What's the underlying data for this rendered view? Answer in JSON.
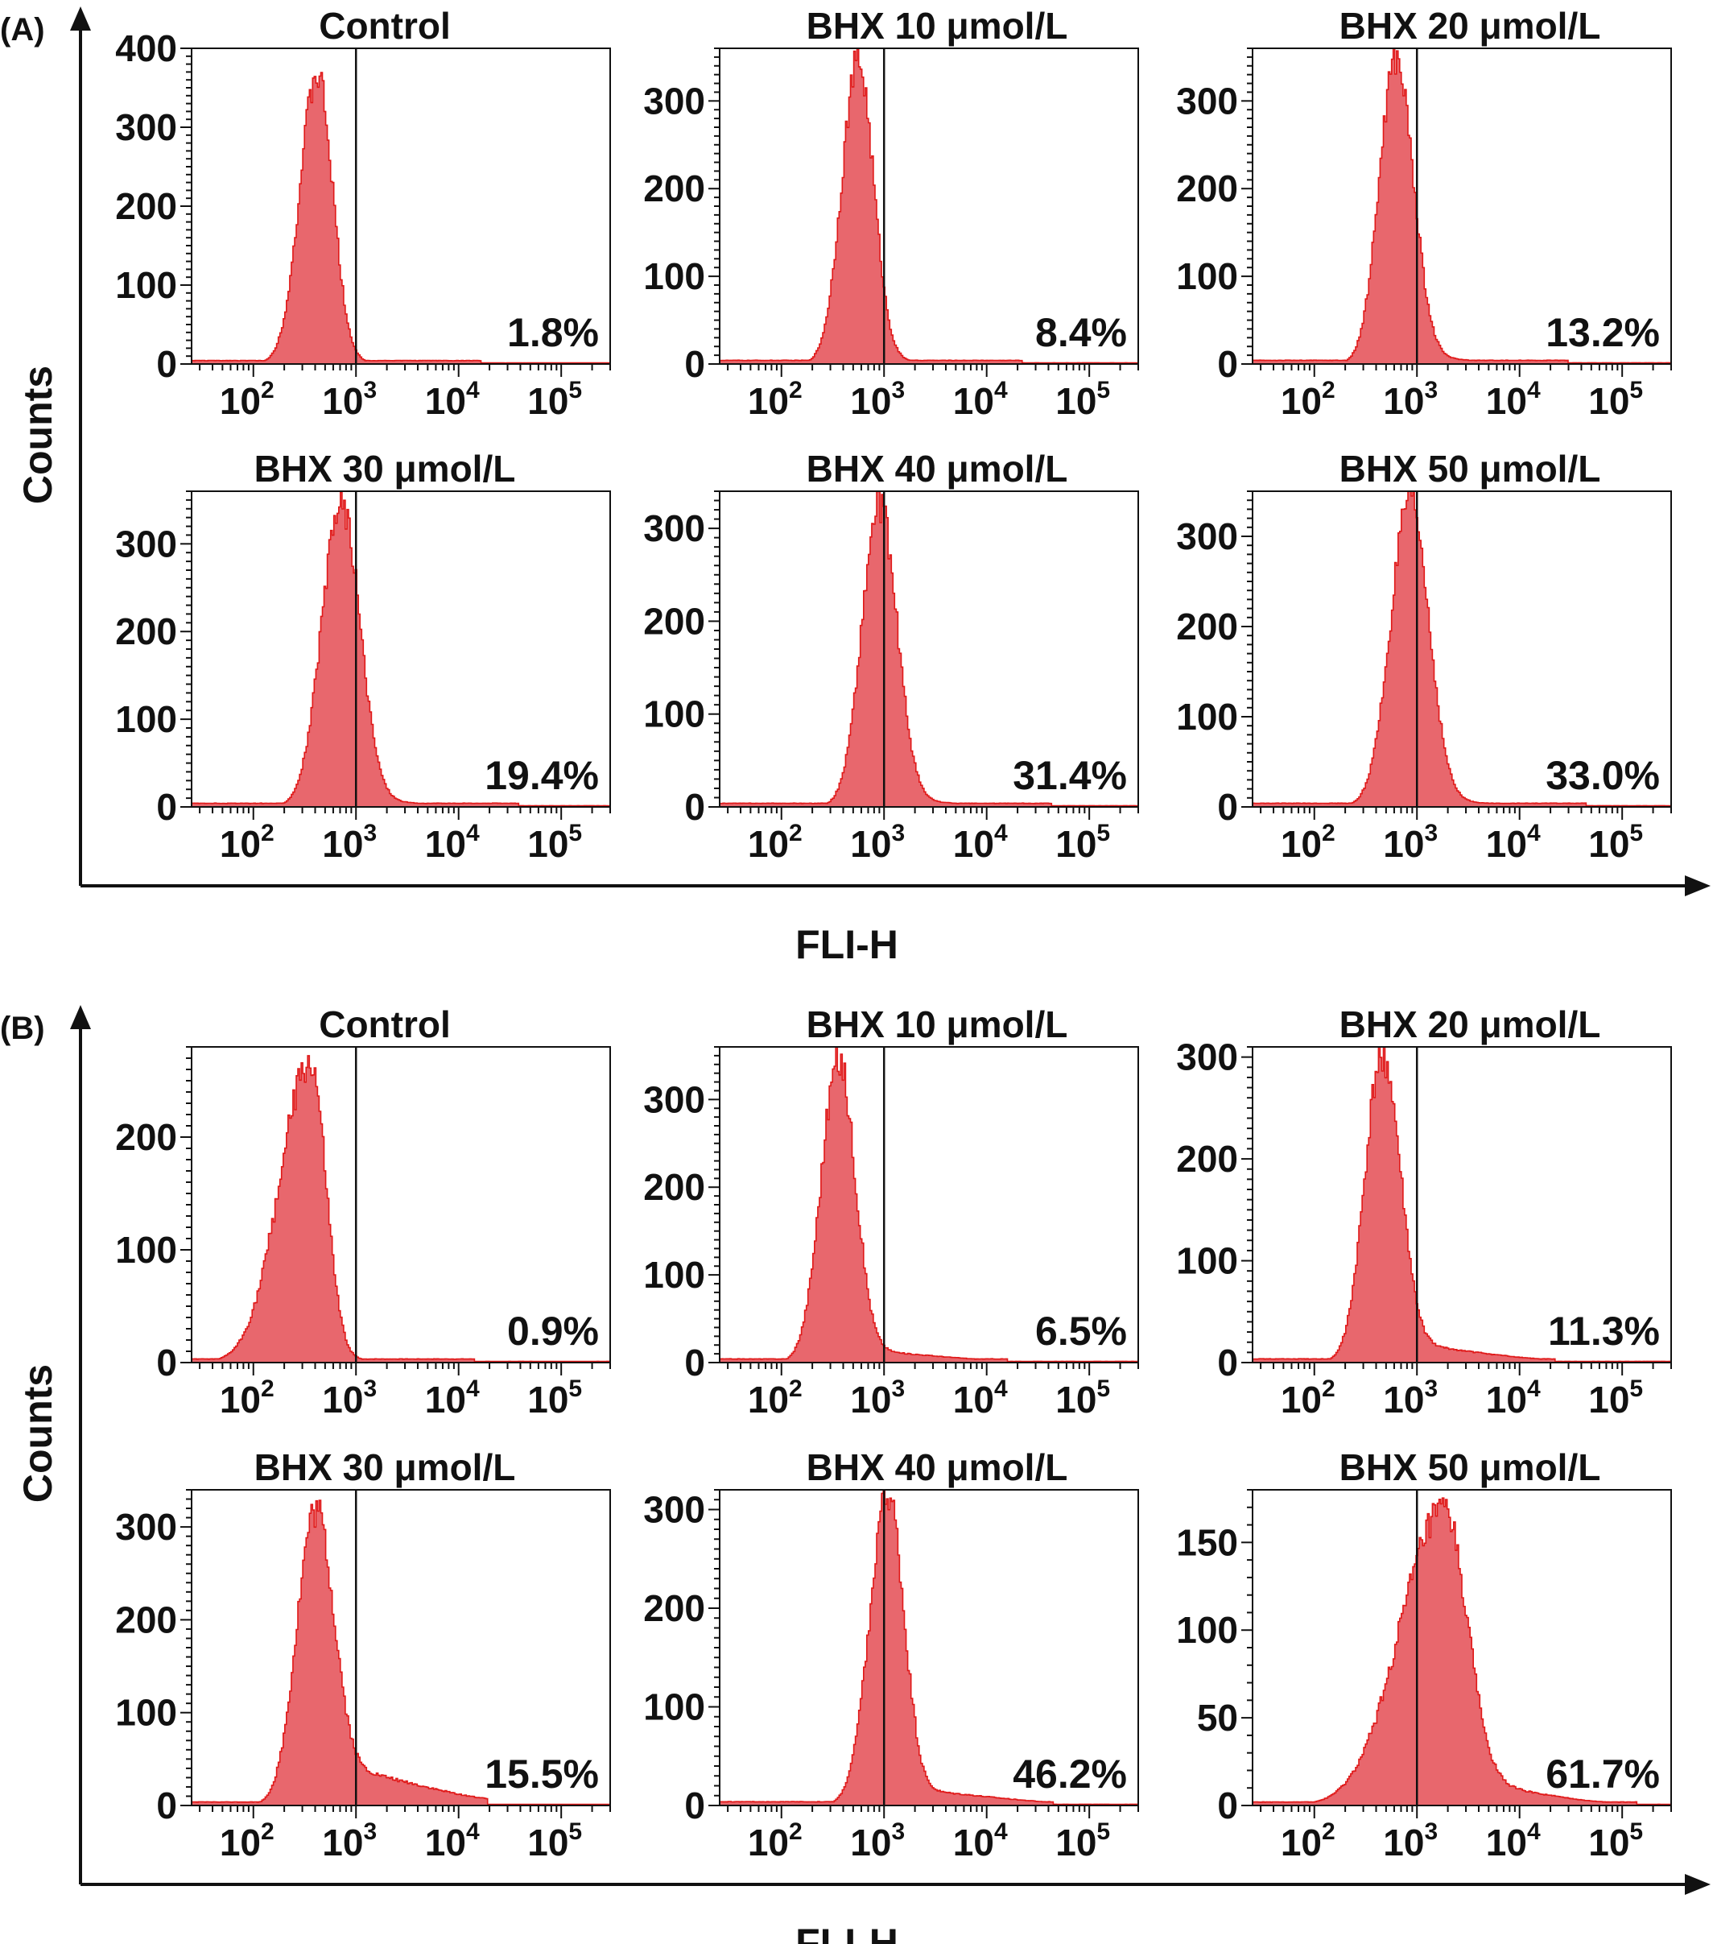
{
  "colors": {
    "fill": "#e8676d",
    "stroke": "#e01818",
    "axis": "#111111"
  },
  "figure": {
    "x_label": "FLI-H",
    "y_label": "Counts",
    "x_scale": "log",
    "x_ticks": [
      "10",
      "10",
      "10",
      "10"
    ],
    "x_tick_exponents": [
      "2",
      "3",
      "4",
      "5"
    ],
    "x_tick_values": [
      100,
      1000,
      10000,
      100000
    ],
    "x_range": [
      25,
      300000
    ],
    "gate_x": 1000
  },
  "chart_data": [
    {
      "panel_label": "(A)",
      "type": "histogram",
      "x_axis_label": "FLI-H",
      "y_axis_label": "Counts",
      "subplots": [
        {
          "title": "Control",
          "percent": "1.8%",
          "ylim": [
            0,
            400
          ],
          "yticks": [
            "0",
            "100",
            "200",
            "300",
            "400"
          ],
          "ytick_values": [
            0,
            100,
            200,
            300,
            400
          ],
          "peak_x": 420,
          "peak_y": 365,
          "sigma_left": 0.17,
          "sigma_right": 0.15,
          "tail_level": 0.006,
          "tail_sigma": 0.4
        },
        {
          "title": "BHX 10 μmol/L",
          "percent": "8.4%",
          "ylim": [
            0,
            360
          ],
          "yticks": [
            "0",
            "100",
            "200",
            "300"
          ],
          "ytick_values": [
            0,
            100,
            200,
            300
          ],
          "peak_x": 560,
          "peak_y": 345,
          "sigma_left": 0.16,
          "sigma_right": 0.15,
          "tail_level": 0.012,
          "tail_sigma": 0.4
        },
        {
          "title": "BHX 20 μmol/L",
          "percent": "13.2%",
          "ylim": [
            0,
            360
          ],
          "yticks": [
            "0",
            "100",
            "200",
            "300"
          ],
          "ytick_values": [
            0,
            100,
            200,
            300
          ],
          "peak_x": 620,
          "peak_y": 350,
          "sigma_left": 0.16,
          "sigma_right": 0.17,
          "tail_level": 0.02,
          "tail_sigma": 0.45
        },
        {
          "title": "BHX 30 μmol/L",
          "percent": "19.4%",
          "ylim": [
            0,
            360
          ],
          "yticks": [
            "0",
            "100",
            "200",
            "300"
          ],
          "ytick_values": [
            0,
            100,
            200,
            300
          ],
          "peak_x": 720,
          "peak_y": 345,
          "sigma_left": 0.19,
          "sigma_right": 0.18,
          "tail_level": 0.02,
          "tail_sigma": 0.45
        },
        {
          "title": "BHX 40 μmol/L",
          "percent": "31.4%",
          "ylim": [
            0,
            340
          ],
          "yticks": [
            "0",
            "100",
            "200",
            "300"
          ],
          "ytick_values": [
            0,
            100,
            200,
            300
          ],
          "peak_x": 900,
          "peak_y": 325,
          "sigma_left": 0.17,
          "sigma_right": 0.17,
          "tail_level": 0.02,
          "tail_sigma": 0.45
        },
        {
          "title": "BHX 50 μmol/L",
          "percent": "33.0%",
          "ylim": [
            0,
            350
          ],
          "yticks": [
            "0",
            "100",
            "200",
            "300"
          ],
          "ytick_values": [
            0,
            100,
            200,
            300
          ],
          "peak_x": 860,
          "peak_y": 340,
          "sigma_left": 0.19,
          "sigma_right": 0.18,
          "tail_level": 0.02,
          "tail_sigma": 0.45
        }
      ]
    },
    {
      "panel_label": "(B)",
      "type": "histogram",
      "x_axis_label": "FLI-H",
      "y_axis_label": "Counts",
      "subplots": [
        {
          "title": "Control",
          "percent": "0.9%",
          "ylim": [
            0,
            280
          ],
          "yticks": [
            "0",
            "100",
            "200"
          ],
          "ytick_values": [
            0,
            100,
            200
          ],
          "peak_x": 360,
          "peak_y": 265,
          "sigma_left": 0.3,
          "sigma_right": 0.15,
          "tail_level": 0.01,
          "tail_sigma": 0.5
        },
        {
          "title": "BHX 10 μmol/L",
          "percent": "6.5%",
          "ylim": [
            0,
            360
          ],
          "yticks": [
            "0",
            "100",
            "200",
            "300"
          ],
          "ytick_values": [
            0,
            100,
            200,
            300
          ],
          "peak_x": 360,
          "peak_y": 345,
          "sigma_left": 0.17,
          "sigma_right": 0.16,
          "tail_level": 0.04,
          "tail_sigma": 0.55
        },
        {
          "title": "BHX 20 μmol/L",
          "percent": "11.3%",
          "ylim": [
            0,
            310
          ],
          "yticks": [
            "0",
            "100",
            "200",
            "300"
          ],
          "ytick_values": [
            0,
            100,
            200,
            300
          ],
          "peak_x": 460,
          "peak_y": 300,
          "sigma_left": 0.17,
          "sigma_right": 0.17,
          "tail_level": 0.06,
          "tail_sigma": 0.55
        },
        {
          "title": "BHX 30 μmol/L",
          "percent": "15.5%",
          "ylim": [
            0,
            340
          ],
          "yticks": [
            "0",
            "100",
            "200",
            "300"
          ],
          "ytick_values": [
            0,
            100,
            200,
            300
          ],
          "peak_x": 400,
          "peak_y": 315,
          "sigma_left": 0.18,
          "sigma_right": 0.17,
          "tail_level": 0.13,
          "tail_sigma": 0.6
        },
        {
          "title": "BHX 40 μmol/L",
          "percent": "46.2%",
          "ylim": [
            0,
            320
          ],
          "yticks": [
            "0",
            "100",
            "200",
            "300"
          ],
          "ytick_values": [
            0,
            100,
            200,
            300
          ],
          "peak_x": 1100,
          "peak_y": 315,
          "sigma_left": 0.18,
          "sigma_right": 0.15,
          "tail_level": 0.05,
          "tail_sigma": 0.6
        },
        {
          "title": "BHX 50 μmol/L",
          "percent": "61.7%",
          "ylim": [
            0,
            180
          ],
          "yticks": [
            "0",
            "50",
            "100",
            "150"
          ],
          "ytick_values": [
            0,
            50,
            100,
            150
          ],
          "peak_x": 1800,
          "peak_y": 168,
          "sigma_left": 0.42,
          "sigma_right": 0.22,
          "tail_level": 0.08,
          "tail_sigma": 0.5
        }
      ]
    }
  ]
}
